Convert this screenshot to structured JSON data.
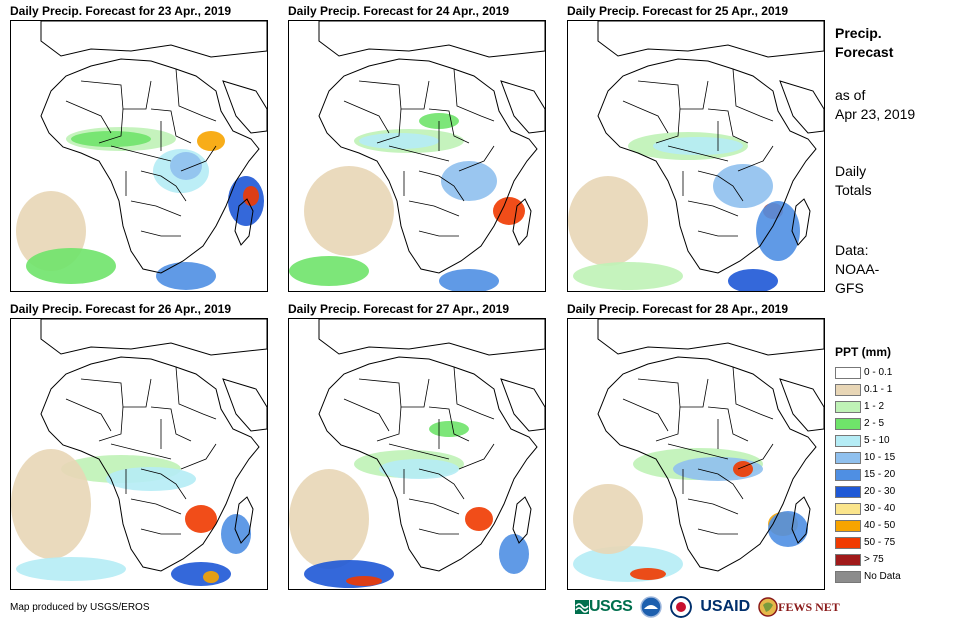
{
  "panels": [
    {
      "title": "Daily Precip. Forecast for 23 Apr., 2019"
    },
    {
      "title": "Daily Precip. Forecast for 24 Apr., 2019"
    },
    {
      "title": "Daily Precip. Forecast for 25 Apr., 2019"
    },
    {
      "title": "Daily Precip. Forecast for 26 Apr., 2019"
    },
    {
      "title": "Daily Precip. Forecast for 27 Apr., 2019"
    },
    {
      "title": "Daily Precip. Forecast for 28 Apr., 2019"
    }
  ],
  "side": {
    "title_line1": "Precip.",
    "title_line2": "Forecast",
    "asof_line1": "as of",
    "asof_line2": "Apr 23, 2019",
    "totals_line1": "Daily",
    "totals_line2": "Totals",
    "data_line1": "Data:",
    "data_line2": "NOAA-",
    "data_line3": "GFS"
  },
  "legend": {
    "title": "PPT (mm)",
    "items": [
      {
        "label": "0 - 0.1",
        "color": "#ffffff"
      },
      {
        "label": "0.1 - 1",
        "color": "#e8d6b6"
      },
      {
        "label": "1 - 2",
        "color": "#bff2b6"
      },
      {
        "label": "2 - 5",
        "color": "#6fe36a"
      },
      {
        "label": "5 - 10",
        "color": "#b5ecf5"
      },
      {
        "label": "10 - 15",
        "color": "#8fc0ee"
      },
      {
        "label": "15 - 20",
        "color": "#4f8fe3"
      },
      {
        "label": "20 - 30",
        "color": "#1e58d6"
      },
      {
        "label": "30 - 40",
        "color": "#fbe58c"
      },
      {
        "label": "40 - 50",
        "color": "#f7a400"
      },
      {
        "label": "50 - 75",
        "color": "#f03a00"
      },
      {
        "label": "> 75",
        "color": "#a11a1a"
      },
      {
        "label": "No Data",
        "color": "#8c8c8c"
      }
    ]
  },
  "credit": "Map produced by USGS/EROS",
  "logos": {
    "usgs": "USGS",
    "usaid": "USAID",
    "fews": "FEWS NET"
  }
}
